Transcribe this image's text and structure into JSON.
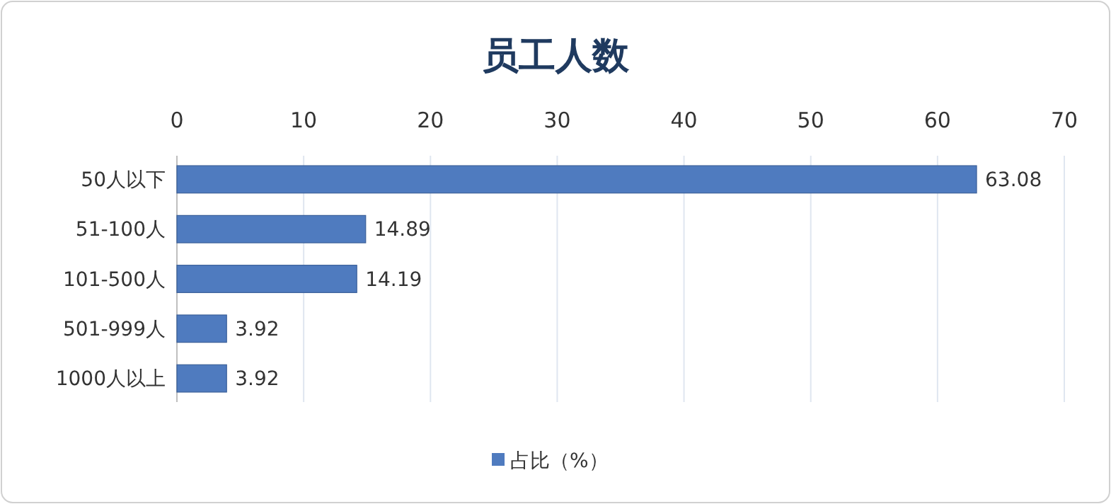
{
  "chart_data": {
    "type": "bar",
    "orientation": "horizontal",
    "title": "员工人数",
    "categories": [
      "50人以下",
      "51-100人",
      "101-500人",
      "501-999人",
      "1000人以上"
    ],
    "series": [
      {
        "name": "占比（%）",
        "color": "#4f7bbf",
        "values": [
          63.08,
          14.89,
          14.19,
          3.92,
          3.92
        ]
      }
    ],
    "xlim": [
      0,
      70
    ],
    "xticks": [
      0,
      10,
      20,
      30,
      40,
      50,
      60,
      70
    ],
    "grid": "x",
    "data_labels": true,
    "legend": "bottom"
  }
}
